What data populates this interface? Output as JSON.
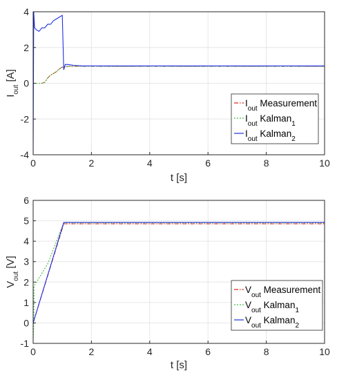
{
  "chart_data": [
    {
      "type": "line",
      "title": "",
      "xlabel": "t [s]",
      "ylabel_main": "I",
      "ylabel_sub": "out",
      "ylabel_tail": " [A]",
      "xlim": [
        0,
        10
      ],
      "ylim": [
        -4,
        4
      ],
      "xticks": [
        0,
        2,
        4,
        6,
        8,
        10
      ],
      "yticks": [
        -4,
        -2,
        0,
        2,
        4
      ],
      "grid": true,
      "legend_position": "lower-right",
      "series": [
        {
          "name_main": "I",
          "name_sub": "out",
          "name_tail": " Measurement",
          "name_tail_sub": "",
          "color": "#d9291c",
          "style": "dashdot",
          "x": [
            0,
            0.05,
            0.1,
            0.2,
            0.3,
            0.4,
            0.5,
            0.6,
            0.7,
            0.8,
            0.9,
            1.0,
            1.2,
            1.5,
            2,
            3,
            4,
            5,
            6,
            7,
            8,
            9,
            10
          ],
          "y": [
            0,
            0,
            0,
            0,
            0,
            0.05,
            0.3,
            0.45,
            0.55,
            0.65,
            0.8,
            0.9,
            0.95,
            0.95,
            0.95,
            0.95,
            0.95,
            0.95,
            0.95,
            0.95,
            0.95,
            0.95,
            0.95
          ]
        },
        {
          "name_main": "I",
          "name_sub": "out",
          "name_tail": " Kalman",
          "name_tail_sub": "1",
          "color": "#3dbd3d",
          "style": "dotted",
          "x": [
            0,
            0.05,
            0.1,
            0.2,
            0.3,
            0.4,
            0.5,
            0.6,
            0.7,
            0.8,
            0.9,
            1.0,
            1.2,
            1.5,
            2,
            3,
            4,
            5,
            6,
            7,
            8,
            9,
            10
          ],
          "y": [
            0,
            0,
            0,
            0,
            0,
            0.05,
            0.3,
            0.45,
            0.55,
            0.65,
            0.8,
            0.9,
            0.95,
            0.95,
            0.95,
            0.95,
            0.95,
            0.95,
            0.95,
            0.95,
            0.95,
            0.95,
            0.95
          ]
        },
        {
          "name_main": "I",
          "name_sub": "out",
          "name_tail": " Kalman",
          "name_tail_sub": "2",
          "color": "#1f2fe0",
          "style": "solid",
          "x": [
            0,
            0.02,
            0.05,
            0.1,
            0.2,
            0.3,
            0.4,
            0.5,
            0.6,
            0.7,
            0.8,
            0.9,
            1.0,
            1.05,
            1.1,
            1.2,
            1.4,
            1.7,
            2,
            3,
            4,
            5,
            6,
            7,
            8,
            9,
            10
          ],
          "y": [
            -4,
            4,
            3.1,
            3.0,
            2.9,
            3.1,
            3.1,
            3.3,
            3.3,
            3.5,
            3.6,
            3.7,
            3.8,
            0.75,
            1.05,
            1.05,
            1.0,
            0.97,
            0.97,
            0.97,
            0.97,
            0.97,
            0.97,
            0.97,
            0.97,
            0.97,
            0.97
          ]
        }
      ]
    },
    {
      "type": "line",
      "title": "",
      "xlabel": "t [s]",
      "ylabel_main": "V",
      "ylabel_sub": "out",
      "ylabel_tail": " [V]",
      "xlim": [
        0,
        10
      ],
      "ylim": [
        -1,
        6
      ],
      "xticks": [
        0,
        2,
        4,
        6,
        8,
        10
      ],
      "yticks": [
        -1,
        0,
        1,
        2,
        3,
        4,
        5,
        6
      ],
      "grid": true,
      "legend_position": "lower-right",
      "series": [
        {
          "name_main": "V",
          "name_sub": "out",
          "name_tail": " Measurement",
          "name_tail_sub": "",
          "color": "#d9291c",
          "style": "dashdot",
          "x": [
            0,
            1.05,
            1.1,
            2,
            4,
            6,
            8,
            10
          ],
          "y": [
            0,
            4.85,
            4.85,
            4.85,
            4.85,
            4.85,
            4.85,
            4.85
          ]
        },
        {
          "name_main": "V",
          "name_sub": "out",
          "name_tail": " Kalman",
          "name_tail_sub": "1",
          "color": "#3dbd3d",
          "style": "dotted",
          "x": [
            0,
            0.02,
            0.03,
            0.5,
            1.05,
            1.1,
            2,
            4,
            6,
            8,
            10
          ],
          "y": [
            -1,
            0,
            1.8,
            2.9,
            4.9,
            4.9,
            4.9,
            4.9,
            4.9,
            4.9,
            4.9
          ]
        },
        {
          "name_main": "V",
          "name_sub": "out",
          "name_tail": " Kalman",
          "name_tail_sub": "2",
          "color": "#1f2fe0",
          "style": "solid",
          "x": [
            0,
            1.05,
            1.1,
            2,
            4,
            6,
            8,
            10
          ],
          "y": [
            0,
            4.92,
            4.92,
            4.92,
            4.92,
            4.92,
            4.92,
            4.92
          ]
        }
      ]
    }
  ]
}
